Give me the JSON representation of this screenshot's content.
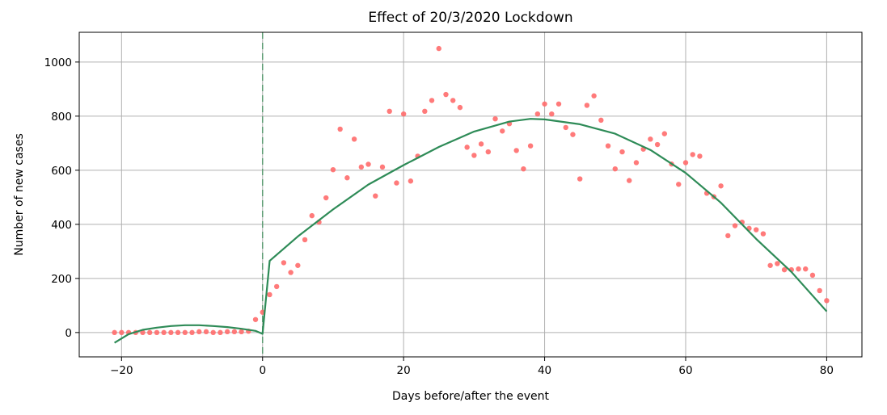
{
  "chart_data": {
    "type": "scatter",
    "title": "Effect of 20/3/2020 Lockdown",
    "xlabel": "Days before/after the event",
    "ylabel": "Number of new cases",
    "xlim": [
      -26,
      85
    ],
    "ylim": [
      -90,
      1110
    ],
    "xticks": [
      -20,
      0,
      20,
      40,
      60,
      80
    ],
    "yticks": [
      0,
      200,
      400,
      600,
      800,
      1000
    ],
    "grid": true,
    "event_x": 0,
    "colors": {
      "points": "#ff6b6b",
      "fit": "#2e8b57",
      "event_line": "#5f9e75"
    },
    "observed": {
      "x": [
        -21,
        -20,
        -19,
        -18,
        -17,
        -16,
        -15,
        -14,
        -13,
        -12,
        -11,
        -10,
        -9,
        -8,
        -7,
        -6,
        -5,
        -4,
        -3,
        -2,
        -1,
        0,
        1,
        2,
        3,
        4,
        5,
        6,
        7,
        8,
        9,
        10,
        11,
        12,
        13,
        14,
        15,
        16,
        17,
        18,
        19,
        20,
        21,
        22,
        23,
        24,
        25,
        26,
        27,
        28,
        29,
        30,
        31,
        32,
        33,
        34,
        35,
        36,
        37,
        38,
        39,
        40,
        41,
        42,
        43,
        44,
        45,
        46,
        47,
        48,
        49,
        50,
        51,
        52,
        53,
        54,
        55,
        56,
        57,
        58,
        59,
        60,
        61,
        62,
        63,
        64,
        65,
        66,
        67,
        68,
        69,
        70,
        71,
        72,
        73,
        74,
        75,
        76,
        77,
        78,
        79,
        80
      ],
      "y": [
        0,
        0,
        0,
        0,
        0,
        0,
        0,
        0,
        0,
        0,
        0,
        0,
        3,
        3,
        0,
        0,
        3,
        3,
        3,
        5,
        48,
        75,
        140,
        170,
        258,
        222,
        248,
        343,
        432,
        408,
        498,
        602,
        752,
        572,
        715,
        612,
        622,
        505,
        612,
        818,
        553,
        808,
        560,
        652,
        818,
        858,
        1050,
        880,
        858,
        832,
        685,
        655,
        697,
        668,
        790,
        745,
        772,
        673,
        605,
        690,
        808,
        845,
        808,
        845,
        758,
        732,
        568,
        840,
        875,
        785,
        690,
        605,
        668,
        562,
        628,
        678,
        715,
        695,
        735,
        623,
        548,
        628,
        658,
        652,
        515,
        502,
        542,
        358,
        395,
        408,
        385,
        380,
        365,
        248,
        255,
        232,
        232,
        235,
        235,
        212,
        155,
        118
      ]
    },
    "fit_pre": {
      "x": [
        -21,
        -19,
        -17,
        -15,
        -13,
        -11,
        -9,
        -7,
        -5,
        -3,
        -1,
        0
      ],
      "y": [
        -38,
        -6,
        10,
        18,
        24,
        27,
        27,
        24,
        20,
        14,
        6,
        -5
      ]
    },
    "fit_post": {
      "x": [
        1,
        5,
        10,
        15,
        20,
        25,
        30,
        35,
        38,
        40,
        45,
        50,
        55,
        60,
        65,
        70,
        75,
        80
      ],
      "y": [
        265,
        355,
        455,
        547,
        619,
        686,
        743,
        780,
        790,
        788,
        770,
        735,
        675,
        590,
        480,
        346,
        224,
        78
      ]
    }
  }
}
